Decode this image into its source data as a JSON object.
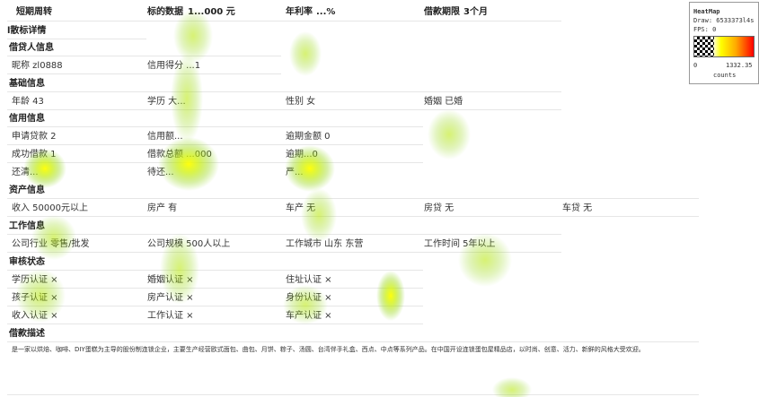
{
  "header": {
    "title": "短期周转",
    "amount_label": "标的数据",
    "amount_value": "1...000 元",
    "rate_label": "年利率",
    "rate_value": "...%",
    "period_label": "借款期限",
    "period_value": "3个月"
  },
  "sections": {
    "loan_detail": "l散标详情",
    "borrower": "借贷人信息",
    "basic": "基础信息",
    "credit": "信用信息",
    "assets": "资产信息",
    "work": "工作信息",
    "review": "审核状态",
    "description": "借款描述"
  },
  "borrower": {
    "nickname": "昵称  zl0888",
    "credit_score": "信用得分 ...1"
  },
  "basic": {
    "age": "年龄  43",
    "education": "学历  大...",
    "gender": "性别  女",
    "marriage": "婚姻  已婚"
  },
  "credit": {
    "applied": "申请贷款  2",
    "credit_limit": "信用额...",
    "overdue_amount": "逾期金额  0",
    "success": "成功借款  1",
    "total_borrowed": "借款总额 ...000",
    "overdue_count": "逾期...0",
    "repaid": "还清...",
    "pending": "待还...",
    "serious_overdue": "严..."
  },
  "assets": {
    "income": "收入  50000元以上",
    "house": "房产  有",
    "car": "车产  无",
    "house_loan": "房贷  无",
    "car_loan": "车贷  无"
  },
  "work": {
    "industry": "公司行业  零售/批发",
    "company_size": "公司规模  500人以上",
    "city": "工作城市  山东 东营",
    "duration": "工作时间  5年以上"
  },
  "review": {
    "edu": "学历认证  ×",
    "marriage": "婚姻认证  ×",
    "address": "住址认证  ×",
    "children": "孩子认证  ×",
    "house": "房产认证  ×",
    "identity": "身份认证  ×",
    "income": "收入认证  ×",
    "job": "工作认证  ×",
    "car": "车产认证  ×"
  },
  "description_text": "是一家以烘焙、咖啡、DIY蛋糕为主导的股份制连锁企业，主要生产经营欧式面包、曲包、月饼、粽子、汤圆、台湾伴手礼盒、西点、中点等系列产品。在中国开设连锁蛋包屋精品店，以时尚、创意、活力、新鲜的风格大受欢迎。",
  "heatmap_legend": {
    "title": "HeatMap",
    "draw": "Draw: 6533373l4s",
    "fps": "FPS: 0",
    "min": "0",
    "max": "1332.35",
    "unit": "counts"
  },
  "colors": {
    "hot": "#ffff00",
    "mid": "#a8e000",
    "cool": "#7fd000"
  }
}
